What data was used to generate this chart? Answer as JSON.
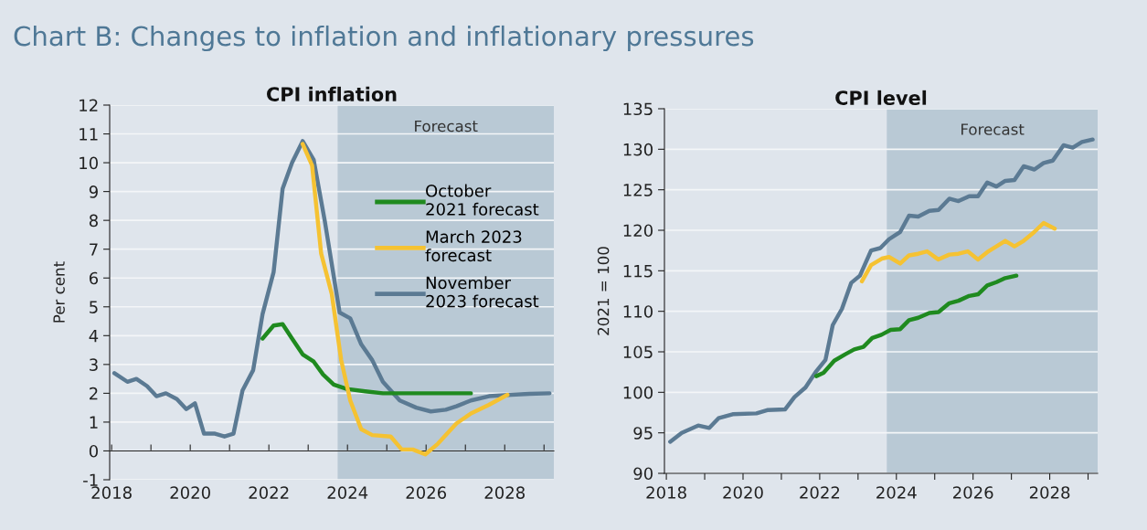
{
  "chart_data": [
    {
      "type": "line",
      "title": "CPI inflation",
      "ylabel": "Per cent",
      "annotations": [
        "Chart B: Changes to inflation and inflationary pressures"
      ],
      "xlim": [
        2017.95,
        2029.25
      ],
      "ylim": [
        -1,
        12
      ],
      "xticks": [
        {
          "value": 2018,
          "label": "2018"
        },
        {
          "value": 2019,
          "label": null
        },
        {
          "value": 2020,
          "label": "2020"
        },
        {
          "value": 2021,
          "label": null
        },
        {
          "value": 2022,
          "label": "2022"
        },
        {
          "value": 2023,
          "label": null
        },
        {
          "value": 2024,
          "label": "2024"
        },
        {
          "value": 2025,
          "label": null
        },
        {
          "value": 2026,
          "label": "2026"
        },
        {
          "value": 2027,
          "label": null
        },
        {
          "value": 2028,
          "label": "2028"
        },
        {
          "value": 2029,
          "label": null
        }
      ],
      "yticks": [
        -1,
        0,
        1,
        2,
        3,
        4,
        5,
        6,
        7,
        8,
        9,
        10,
        11,
        12
      ],
      "grid": "y",
      "legend": "right",
      "bands": [
        {
          "axis": "x",
          "from": 2023.75,
          "to": 2029.25,
          "label": "Forecast",
          "color": "#b9c9d5"
        }
      ],
      "series": [
        {
          "name": "November\n2023 forecast",
          "color": "#5b7a93",
          "x": [
            2018.07,
            2018.4,
            2018.63,
            2018.9,
            2019.14,
            2019.38,
            2019.66,
            2019.9,
            2020.12,
            2020.35,
            2020.63,
            2020.87,
            2021.1,
            2021.33,
            2021.6,
            2021.84,
            2022.12,
            2022.35,
            2022.59,
            2022.86,
            2023.14,
            2023.42,
            2023.8,
            2024.07,
            2024.35,
            2024.63,
            2024.9,
            2025.33,
            2025.75,
            2026.12,
            2026.5,
            2026.77,
            2027.14,
            2027.6,
            2028.17,
            2028.63,
            2029.14
          ],
          "values": [
            2.7,
            2.4,
            2.5,
            2.25,
            1.9,
            2.0,
            1.8,
            1.45,
            1.65,
            0.6,
            0.6,
            0.5,
            0.6,
            2.1,
            2.8,
            4.75,
            6.2,
            9.1,
            10.0,
            10.75,
            10.1,
            8.0,
            4.8,
            4.6,
            3.7,
            3.15,
            2.4,
            1.75,
            1.5,
            1.37,
            1.43,
            1.55,
            1.75,
            1.9,
            1.95,
            1.98,
            2.0
          ]
        },
        {
          "name": "October\n2021 forecast",
          "color": "#1f8a1f",
          "x": [
            2021.84,
            2022.12,
            2022.35,
            2022.59,
            2022.86,
            2023.14,
            2023.38,
            2023.65,
            2023.98,
            2024.45,
            2024.9,
            2027.14
          ],
          "values": [
            3.9,
            4.35,
            4.4,
            3.9,
            3.35,
            3.1,
            2.65,
            2.3,
            2.15,
            2.07,
            2.0,
            2.0
          ]
        },
        {
          "name": "March 2023\nforecast",
          "color": "#f5c232",
          "x": [
            2022.86,
            2023.1,
            2023.33,
            2023.6,
            2023.84,
            2024.07,
            2024.35,
            2024.63,
            2025.1,
            2025.38,
            2025.66,
            2025.98,
            2026.3,
            2026.77,
            2027.14,
            2027.6,
            2028.07
          ],
          "values": [
            10.65,
            9.9,
            6.85,
            5.45,
            3.15,
            1.75,
            0.75,
            0.55,
            0.5,
            0.05,
            0.05,
            -0.12,
            0.25,
            0.95,
            1.3,
            1.6,
            1.95
          ]
        }
      ]
    },
    {
      "type": "line",
      "title": "CPI level",
      "ylabel": "2021 = 100",
      "xlim": [
        2017.95,
        2029.25
      ],
      "ylim": [
        90,
        135
      ],
      "xticks": [
        {
          "value": 2018,
          "label": "2018"
        },
        {
          "value": 2019,
          "label": null
        },
        {
          "value": 2020,
          "label": "2020"
        },
        {
          "value": 2021,
          "label": null
        },
        {
          "value": 2022,
          "label": "2022"
        },
        {
          "value": 2023,
          "label": null
        },
        {
          "value": 2024,
          "label": "2024"
        },
        {
          "value": 2025,
          "label": null
        },
        {
          "value": 2026,
          "label": "2026"
        },
        {
          "value": 2027,
          "label": null
        },
        {
          "value": 2028,
          "label": "2028"
        },
        {
          "value": 2029,
          "label": null
        }
      ],
      "yticks": [
        90,
        95,
        100,
        105,
        110,
        115,
        120,
        125,
        130,
        135
      ],
      "grid": "y",
      "bands": [
        {
          "axis": "x",
          "from": 2023.75,
          "to": 2029.25,
          "label": "Forecast",
          "color": "#b9c9d5"
        }
      ],
      "series": [
        {
          "color": "#5b7a93",
          "x": [
            2018.1,
            2018.4,
            2018.83,
            2019.12,
            2019.36,
            2019.73,
            2020.35,
            2020.63,
            2021.1,
            2021.34,
            2021.63,
            2021.91,
            2022.15,
            2022.34,
            2022.58,
            2022.82,
            2023.05,
            2023.34,
            2023.58,
            2023.81,
            2024.1,
            2024.33,
            2024.57,
            2024.86,
            2025.1,
            2025.38,
            2025.62,
            2025.9,
            2026.13,
            2026.37,
            2026.61,
            2026.84,
            2027.08,
            2027.32,
            2027.6,
            2027.84,
            2028.08,
            2028.36,
            2028.6,
            2028.84,
            2029.12
          ],
          "values": [
            93.9,
            95.0,
            95.9,
            95.6,
            96.8,
            97.3,
            97.4,
            97.8,
            97.9,
            99.4,
            100.6,
            102.6,
            104.0,
            108.3,
            110.3,
            113.5,
            114.4,
            117.5,
            117.8,
            118.9,
            119.8,
            121.8,
            121.7,
            122.4,
            122.5,
            123.9,
            123.6,
            124.2,
            124.2,
            125.9,
            125.4,
            126.1,
            126.2,
            127.9,
            127.5,
            128.3,
            128.6,
            130.5,
            130.2,
            130.9,
            131.2
          ]
        },
        {
          "color": "#1f8a1f",
          "x": [
            2021.91,
            2022.1,
            2022.38,
            2022.67,
            2022.9,
            2023.14,
            2023.37,
            2023.61,
            2023.85,
            2024.1,
            2024.33,
            2024.57,
            2024.86,
            2025.1,
            2025.38,
            2025.62,
            2025.9,
            2026.13,
            2026.37,
            2026.61,
            2026.84,
            2027.13
          ],
          "values": [
            102.0,
            102.4,
            103.9,
            104.7,
            105.3,
            105.6,
            106.7,
            107.1,
            107.7,
            107.8,
            108.9,
            109.2,
            109.8,
            109.9,
            111.0,
            111.3,
            111.9,
            112.1,
            113.2,
            113.6,
            114.1,
            114.4
          ]
        },
        {
          "color": "#f5c232",
          "x": [
            2023.1,
            2023.34,
            2023.62,
            2023.81,
            2024.1,
            2024.33,
            2024.57,
            2024.8,
            2025.09,
            2025.38,
            2025.62,
            2025.86,
            2026.13,
            2026.37,
            2026.61,
            2026.84,
            2027.08,
            2027.32,
            2027.6,
            2027.84,
            2028.13
          ],
          "values": [
            113.7,
            115.7,
            116.5,
            116.7,
            115.9,
            116.9,
            117.1,
            117.4,
            116.4,
            117.0,
            117.1,
            117.4,
            116.4,
            117.3,
            118.0,
            118.7,
            118.0,
            118.7,
            119.8,
            120.9,
            120.2
          ]
        }
      ]
    }
  ]
}
